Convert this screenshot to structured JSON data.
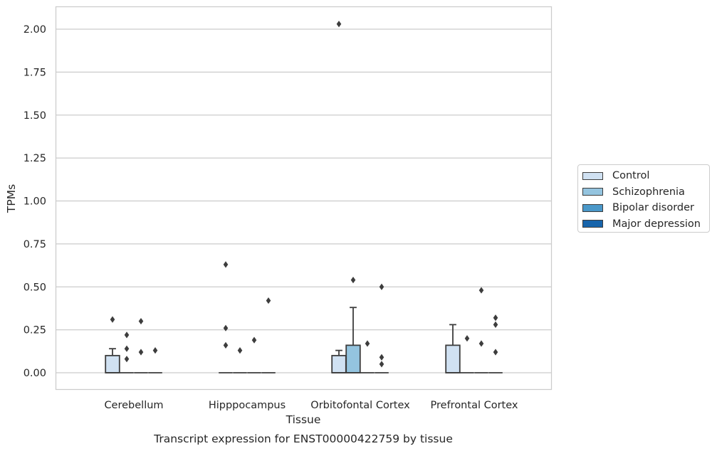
{
  "chart_data": {
    "type": "box",
    "title": "",
    "caption": "Transcript expression for ENST00000422759 by tissue",
    "xlabel": "Tissue",
    "ylabel": "TPMs",
    "ylim": [
      -0.1,
      2.13
    ],
    "yticks": [
      "0.00",
      "0.25",
      "0.50",
      "0.75",
      "1.00",
      "1.25",
      "1.50",
      "1.75",
      "2.00"
    ],
    "ytick_values": [
      0,
      0.25,
      0.5,
      0.75,
      1.0,
      1.25,
      1.5,
      1.75,
      2.0
    ],
    "grid": true,
    "legend_position": "right",
    "categories": [
      "Cerebellum",
      "Hipppocampus",
      "Orbitofontal Cortex",
      "Prefrontal Cortex"
    ],
    "series": [
      {
        "name": "Control",
        "color": "#d0e1f2",
        "boxes": [
          {
            "q1": 0,
            "median": 0,
            "q3": 0.1,
            "whisker_low": 0,
            "whisker_high": 0.14,
            "outliers": [
              0.31
            ]
          },
          {
            "q1": 0,
            "median": 0,
            "q3": 0,
            "whisker_low": 0,
            "whisker_high": 0,
            "outliers": [
              0.63,
              0.26,
              0.16
            ]
          },
          {
            "q1": 0,
            "median": 0,
            "q3": 0.1,
            "whisker_low": 0,
            "whisker_high": 0.13,
            "outliers": [
              2.03
            ]
          },
          {
            "q1": 0,
            "median": 0,
            "q3": 0.16,
            "whisker_low": 0,
            "whisker_high": 0.28,
            "outliers": []
          }
        ]
      },
      {
        "name": "Schizophrenia",
        "color": "#94c4df",
        "boxes": [
          {
            "q1": 0,
            "median": 0,
            "q3": 0,
            "whisker_low": 0,
            "whisker_high": 0,
            "outliers": [
              0.22,
              0.14,
              0.08
            ]
          },
          {
            "q1": 0,
            "median": 0,
            "q3": 0,
            "whisker_low": 0,
            "whisker_high": 0,
            "outliers": [
              0.13
            ]
          },
          {
            "q1": 0,
            "median": 0,
            "q3": 0.16,
            "whisker_low": 0,
            "whisker_high": 0.38,
            "outliers": [
              0.54
            ]
          },
          {
            "q1": 0,
            "median": 0,
            "q3": 0,
            "whisker_low": 0,
            "whisker_high": 0,
            "outliers": [
              0.2
            ]
          }
        ]
      },
      {
        "name": "Bipolar disorder",
        "color": "#4a98c9",
        "boxes": [
          {
            "q1": 0,
            "median": 0,
            "q3": 0,
            "whisker_low": 0,
            "whisker_high": 0,
            "outliers": [
              0.3,
              0.12
            ]
          },
          {
            "q1": 0,
            "median": 0,
            "q3": 0,
            "whisker_low": 0,
            "whisker_high": 0,
            "outliers": [
              0.19
            ]
          },
          {
            "q1": 0,
            "median": 0,
            "q3": 0,
            "whisker_low": 0,
            "whisker_high": 0,
            "outliers": [
              0.17
            ]
          },
          {
            "q1": 0,
            "median": 0,
            "q3": 0,
            "whisker_low": 0,
            "whisker_high": 0,
            "outliers": [
              0.48,
              0.17
            ]
          }
        ]
      },
      {
        "name": "Major depression",
        "color": "#1764ab",
        "boxes": [
          {
            "q1": 0,
            "median": 0,
            "q3": 0,
            "whisker_low": 0,
            "whisker_high": 0,
            "outliers": [
              0.13
            ]
          },
          {
            "q1": 0,
            "median": 0,
            "q3": 0,
            "whisker_low": 0,
            "whisker_high": 0,
            "outliers": [
              0.42
            ]
          },
          {
            "q1": 0,
            "median": 0,
            "q3": 0,
            "whisker_low": 0,
            "whisker_high": 0,
            "outliers": [
              0.5,
              0.09,
              0.05
            ]
          },
          {
            "q1": 0,
            "median": 0,
            "q3": 0,
            "whisker_low": 0,
            "whisker_high": 0,
            "outliers": [
              0.32,
              0.28,
              0.12
            ]
          }
        ]
      }
    ]
  }
}
